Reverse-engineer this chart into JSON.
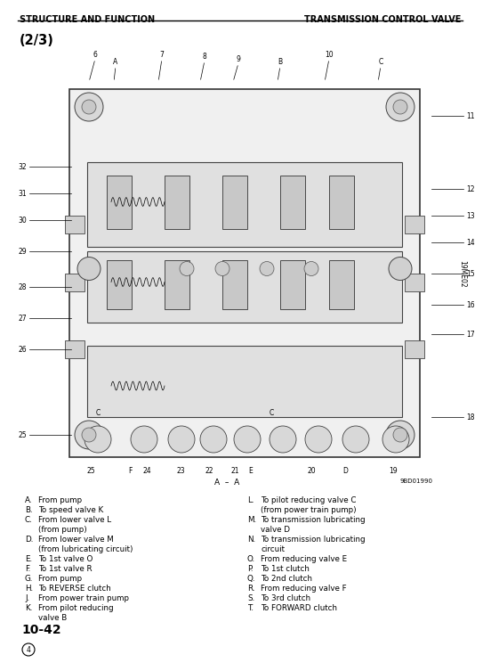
{
  "header_left": "STRUCTURE AND FUNCTION",
  "header_right": "TRANSMISSION CONTROL VALVE",
  "section_label": "(2/3)",
  "diagram_ref": "19ME02",
  "figure_ref": "9BD01990",
  "a_a_label": "A – A",
  "footer_page": "10-42",
  "bg_color": "#ffffff",
  "text_color": "#000000",
  "header_fontsize": 7.0,
  "legend_fontsize": 6.3,
  "section_fontsize": 10.5,
  "left_legend": [
    [
      "A.",
      "From pump"
    ],
    [
      "B.",
      "To speed valve K"
    ],
    [
      "C.",
      "From lower valve L",
      "(from pump)"
    ],
    [
      "D.",
      "From lower valve M",
      "(from lubricating circuit)"
    ],
    [
      "E.",
      "To 1st valve O"
    ],
    [
      "F.",
      "To 1st valve R"
    ],
    [
      "G.",
      "From pump"
    ],
    [
      "H.",
      "To REVERSE clutch"
    ],
    [
      "J.",
      "From power train pump"
    ],
    [
      "K.",
      "From pilot reducing",
      "valve B"
    ]
  ],
  "right_legend": [
    [
      "L.",
      "To pilot reducing valve C",
      "(from power train pump)"
    ],
    [
      "M.",
      "To transmission lubricating",
      "valve D"
    ],
    [
      "N.",
      "To transmission lubricating",
      "circuit"
    ],
    [
      "O.",
      "From reducing valve E"
    ],
    [
      "P.",
      "To 1st clutch"
    ],
    [
      "Q.",
      "To 2nd clutch"
    ],
    [
      "R.",
      "From reducing valve F"
    ],
    [
      "S.",
      "To 3rd clutch"
    ],
    [
      "T.",
      "To FORWARD clutch"
    ]
  ],
  "top_callouts": [
    [
      "6",
      95,
      1
    ],
    [
      "A",
      120,
      1
    ],
    [
      "7",
      172,
      1
    ],
    [
      "8",
      220,
      1
    ],
    [
      "9",
      258,
      1
    ],
    [
      "B",
      305,
      1
    ],
    [
      "10",
      360,
      1
    ],
    [
      "C",
      418,
      1
    ]
  ],
  "right_callouts": [
    [
      "11",
      470
    ],
    [
      "12",
      310
    ],
    [
      "13",
      285
    ],
    [
      "14",
      260
    ],
    [
      "15",
      235
    ],
    [
      "16",
      210
    ],
    [
      "17",
      185
    ],
    [
      "18",
      155
    ]
  ],
  "left_callouts": [
    [
      "32",
      310
    ],
    [
      "31",
      285
    ],
    [
      "30",
      260
    ],
    [
      "29",
      235
    ],
    [
      "28",
      210
    ],
    [
      "27",
      185
    ],
    [
      "26",
      160
    ]
  ],
  "bottom_callouts": [
    [
      "25",
      95
    ],
    [
      "F",
      138
    ],
    [
      "24",
      155
    ],
    [
      "23",
      192
    ],
    [
      "22",
      222
    ],
    [
      "21",
      252
    ],
    [
      "E",
      268
    ],
    [
      "20",
      335
    ],
    [
      "D",
      378
    ],
    [
      "19",
      430
    ]
  ]
}
